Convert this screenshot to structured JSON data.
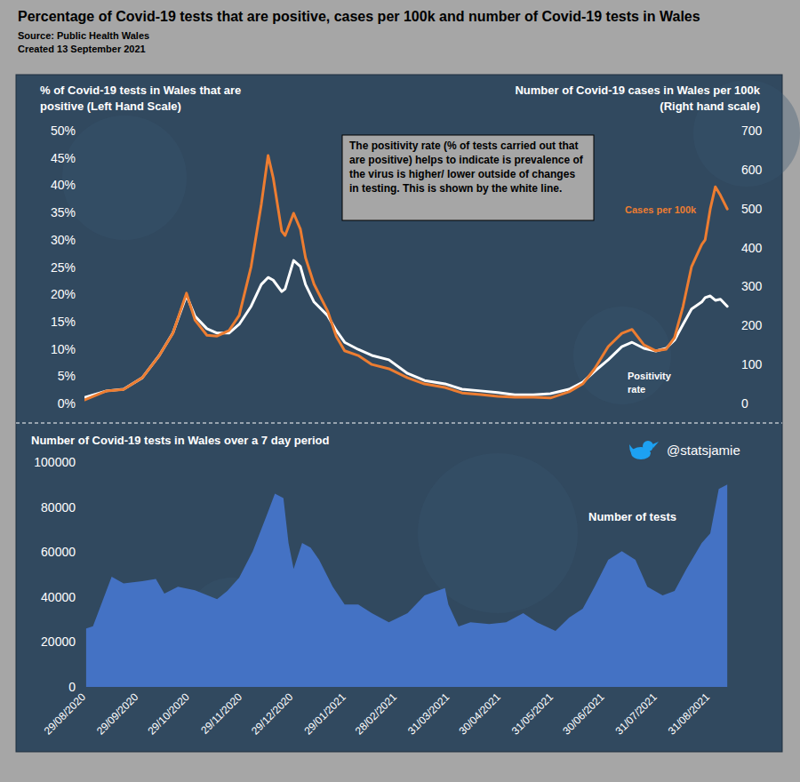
{
  "chart_data": [
    {
      "type": "line",
      "title": "Percentage of Covid-19 tests that are positive, cases per 100k and number of Covid-19 tests in Wales",
      "subtitle": [
        "Source: Public Health Wales",
        "Created 13 September 2021"
      ],
      "y_label": "% of Covid-19 tests in Wales that are positive (Left Hand Scale)",
      "y2_label": "Number of Covid-19 cases in Wales per 100k (Right hand scale)",
      "annotations": [
        "The positivity rate (% of tests carried out that are positive) helps to indicate is prevalence of the virus is higher/ lower outside of changes in testing. This is shown by the white line."
      ],
      "grid": false,
      "xlim": [
        "2020-08-28",
        "2021-09-12"
      ],
      "ylim": [
        0,
        50
      ],
      "yticks": [
        {
          "value": 0,
          "label": "0%"
        },
        {
          "value": 5,
          "label": "5%"
        },
        {
          "value": 10,
          "label": "10%"
        },
        {
          "value": 15,
          "label": "15%"
        },
        {
          "value": 20,
          "label": "20%"
        },
        {
          "value": 25,
          "label": "25%"
        },
        {
          "value": 30,
          "label": "30%"
        },
        {
          "value": 35,
          "label": "35%"
        },
        {
          "value": 40,
          "label": "40%"
        },
        {
          "value": 45,
          "label": "45%"
        },
        {
          "value": 50,
          "label": "50%"
        }
      ],
      "y2lim": [
        0,
        700
      ],
      "y2ticks": [
        0,
        100,
        200,
        300,
        400,
        500,
        600,
        700
      ],
      "x": [
        "2020-08-28",
        "2020-09-10",
        "2020-09-20",
        "2020-10-01",
        "2020-10-11",
        "2020-10-19",
        "2020-10-27",
        "2020-11-01",
        "2020-11-08",
        "2020-11-14",
        "2020-11-21",
        "2020-11-27",
        "2020-12-04",
        "2020-12-10",
        "2020-12-14",
        "2020-12-17",
        "2020-12-22",
        "2020-12-24",
        "2020-12-29",
        "2021-01-02",
        "2021-01-05",
        "2021-01-10",
        "2021-01-18",
        "2021-01-23",
        "2021-01-28",
        "2021-02-05",
        "2021-02-13",
        "2021-02-23",
        "2021-03-06",
        "2021-03-16",
        "2021-03-28",
        "2021-04-07",
        "2021-04-18",
        "2021-04-28",
        "2021-05-08",
        "2021-05-19",
        "2021-05-29",
        "2021-06-09",
        "2021-06-17",
        "2021-06-24",
        "2021-07-02",
        "2021-07-10",
        "2021-07-16",
        "2021-07-23",
        "2021-07-30",
        "2021-08-05",
        "2021-08-10",
        "2021-08-15",
        "2021-08-20",
        "2021-08-26",
        "2021-08-28",
        "2021-08-31",
        "2021-09-03",
        "2021-09-06",
        "2021-09-10"
      ],
      "series": [
        {
          "name": "Positivity rate",
          "color": "#ffffff",
          "axis": "y",
          "values": [
            1.1,
            2.3,
            2.6,
            4.7,
            8.8,
            12.9,
            19.8,
            16.0,
            13.7,
            12.9,
            12.9,
            14.5,
            17.8,
            21.8,
            23.1,
            22.6,
            20.5,
            21.0,
            26.2,
            25.1,
            21.8,
            18.6,
            16.1,
            13.4,
            11.2,
            9.9,
            8.8,
            8.0,
            5.5,
            4.2,
            3.6,
            2.6,
            2.3,
            2.0,
            1.6,
            1.6,
            1.8,
            2.6,
            3.9,
            5.9,
            8.0,
            10.4,
            11.2,
            10.1,
            9.6,
            10.1,
            11.6,
            14.5,
            17.3,
            18.6,
            19.4,
            19.7,
            18.9,
            19.1,
            17.8
          ]
        },
        {
          "name": "Cases per 100k",
          "color": "#ed7d31",
          "axis": "y2",
          "values": [
            9,
            32,
            36,
            66,
            123,
            180,
            283,
            214,
            175,
            173,
            187,
            226,
            351,
            511,
            636,
            579,
            442,
            431,
            488,
            447,
            374,
            306,
            237,
            173,
            135,
            123,
            100,
            89,
            66,
            50,
            41,
            27,
            23,
            18,
            16,
            16,
            14,
            30,
            50,
            89,
            146,
            180,
            190,
            150,
            135,
            139,
            169,
            249,
            351,
            408,
            420,
            499,
            556,
            534,
            499
          ]
        }
      ]
    },
    {
      "type": "area",
      "title": "Number of Covid-19 tests in Wales over a 7 day period",
      "credit": "@statsjamie",
      "grid": false,
      "xlim": [
        "2020-08-28",
        "2021-09-12"
      ],
      "xticks": [
        {
          "value": "2020-08-29",
          "label": "29/08/2020"
        },
        {
          "value": "2020-09-29",
          "label": "29/09/2020"
        },
        {
          "value": "2020-10-29",
          "label": "29/10/2020"
        },
        {
          "value": "2020-11-29",
          "label": "29/11/2020"
        },
        {
          "value": "2020-12-29",
          "label": "29/12/2020"
        },
        {
          "value": "2021-01-29",
          "label": "29/01/2021"
        },
        {
          "value": "2021-02-28",
          "label": "28/02/2021"
        },
        {
          "value": "2021-03-31",
          "label": "31/03/2021"
        },
        {
          "value": "2021-04-30",
          "label": "30/04/2021"
        },
        {
          "value": "2021-05-31",
          "label": "31/05/2021"
        },
        {
          "value": "2021-06-30",
          "label": "30/06/2021"
        },
        {
          "value": "2021-07-31",
          "label": "31/07/2021"
        },
        {
          "value": "2021-08-31",
          "label": "31/08/2021"
        }
      ],
      "ylim": [
        0,
        100000
      ],
      "yticks": [
        0,
        20000,
        40000,
        60000,
        80000,
        100000
      ],
      "x": [
        "2020-08-29",
        "2020-09-02",
        "2020-09-07",
        "2020-09-13",
        "2020-09-20",
        "2020-10-01",
        "2020-10-09",
        "2020-10-14",
        "2020-10-22",
        "2020-11-01",
        "2020-11-14",
        "2020-11-20",
        "2020-11-27",
        "2020-12-05",
        "2020-12-13",
        "2020-12-18",
        "2020-12-23",
        "2020-12-26",
        "2020-12-29",
        "2021-01-03",
        "2021-01-08",
        "2021-01-13",
        "2021-01-21",
        "2021-01-28",
        "2021-02-05",
        "2021-02-13",
        "2021-02-23",
        "2021-03-06",
        "2021-03-16",
        "2021-03-28",
        "2021-03-30",
        "2021-04-05",
        "2021-04-12",
        "2021-04-23",
        "2021-05-03",
        "2021-05-13",
        "2021-05-21",
        "2021-06-01",
        "2021-06-09",
        "2021-06-17",
        "2021-06-24",
        "2021-07-02",
        "2021-07-10",
        "2021-07-18",
        "2021-07-25",
        "2021-08-03",
        "2021-08-10",
        "2021-08-17",
        "2021-08-26",
        "2021-08-31",
        "2021-09-05",
        "2021-09-10"
      ],
      "series": [
        {
          "name": "Number of tests",
          "color": "#4472c4",
          "values": [
            26000,
            27000,
            37000,
            49000,
            46000,
            47000,
            48000,
            41500,
            44600,
            43000,
            39000,
            42700,
            48600,
            60400,
            76000,
            86000,
            84000,
            64000,
            52500,
            64000,
            62000,
            56500,
            44600,
            36700,
            36700,
            32800,
            28800,
            32800,
            40700,
            44000,
            36700,
            26900,
            28800,
            28000,
            28800,
            32800,
            28800,
            24900,
            30800,
            34800,
            44600,
            56500,
            60400,
            56500,
            44600,
            40700,
            42700,
            52500,
            64000,
            68300,
            88000,
            90000
          ]
        }
      ]
    }
  ]
}
